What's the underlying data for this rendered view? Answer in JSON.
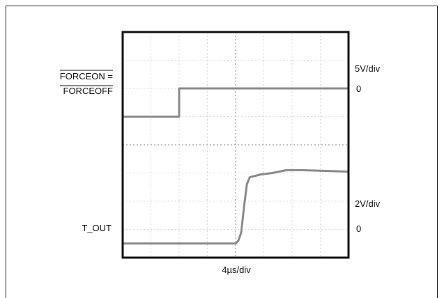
{
  "chart_data": {
    "type": "line",
    "xlabel": "4µs/div",
    "grid": true,
    "x_divisions": 8,
    "y_divisions": 8,
    "channels": [
      {
        "label_top": "FORCEON =",
        "label_bottom": "FORCEOFF",
        "scale": "5V/div",
        "zero_label": "0",
        "zero_div": 5.0,
        "trace": [
          [
            0,
            5.0
          ],
          [
            2.0,
            5.0
          ],
          [
            2.0,
            6.0
          ],
          [
            8.0,
            6.0
          ]
        ],
        "color": "#8a8a8a"
      },
      {
        "label": "T_OUT",
        "scale": "2V/div",
        "zero_label": "0",
        "zero_div": 0.5,
        "trace": [
          [
            0,
            0.5
          ],
          [
            4.0,
            0.5
          ],
          [
            4.1,
            0.6
          ],
          [
            4.2,
            0.9
          ],
          [
            4.3,
            1.8
          ],
          [
            4.4,
            2.6
          ],
          [
            4.5,
            2.85
          ],
          [
            4.9,
            2.95
          ],
          [
            5.3,
            3.0
          ],
          [
            5.8,
            3.1
          ],
          [
            6.3,
            3.1
          ],
          [
            8.0,
            3.05
          ]
        ],
        "color": "#8a8a8a"
      }
    ]
  }
}
